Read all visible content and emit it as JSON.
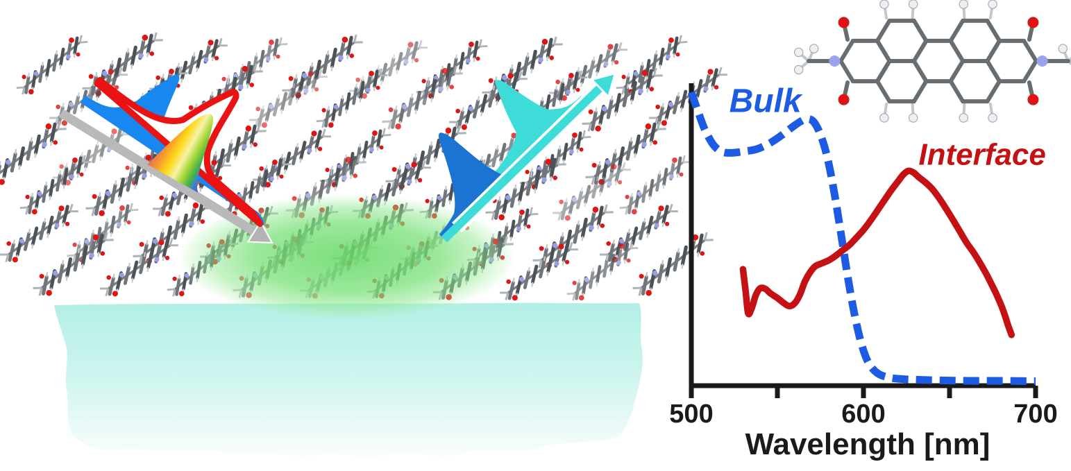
{
  "figure_type": "scientific graphical abstract: interface-specific spectroscopy of a molecular film",
  "chart": {
    "xlabel": "Wavelength [nm]",
    "labels": {
      "bulk": "Bulk",
      "interface": "Interface"
    }
  },
  "chart_data": {
    "type": "line",
    "title": "",
    "xlabel": "Wavelength [nm]",
    "ylabel": "",
    "xlim": [
      500,
      700
    ],
    "ylim": [
      0,
      1.05
    ],
    "grid": false,
    "x_ticks": [
      500,
      550,
      600,
      650,
      700
    ],
    "x_tick_labeled": [
      500,
      600,
      700
    ],
    "x_tick_labels": [
      "500",
      "600",
      "700"
    ],
    "legend_position": "in-plot annotations",
    "series": [
      {
        "name": "Bulk",
        "style": "dashed",
        "color": "#1E5BE4",
        "x": [
          500,
          504,
          508,
          513,
          518,
          524,
          531,
          538,
          545,
          552,
          558,
          563,
          567,
          571,
          575,
          579,
          583,
          587,
          591,
          595,
          599,
          603,
          608,
          614,
          622,
          635,
          650,
          665,
          680,
          700
        ],
        "y": [
          0.97,
          0.905,
          0.845,
          0.795,
          0.773,
          0.77,
          0.775,
          0.782,
          0.8,
          0.826,
          0.852,
          0.872,
          0.882,
          0.873,
          0.83,
          0.755,
          0.64,
          0.5,
          0.355,
          0.23,
          0.135,
          0.075,
          0.042,
          0.028,
          0.022,
          0.019,
          0.017,
          0.016,
          0.016,
          0.015
        ]
      },
      {
        "name": "Interface",
        "style": "solid",
        "color": "#C41113",
        "x": [
          530,
          531.5,
          533,
          535,
          537.5,
          540,
          543,
          546,
          550,
          554,
          557,
          560,
          563,
          566,
          569,
          572,
          576,
          580,
          584,
          588,
          592,
          596,
          600,
          604,
          608,
          612,
          616,
          620,
          623,
          626,
          629,
          632,
          636,
          640,
          644,
          648,
          652,
          656,
          660,
          664,
          668,
          671,
          674,
          677,
          680,
          682,
          684,
          686
        ],
        "y": [
          0.385,
          0.315,
          0.24,
          0.255,
          0.3,
          0.322,
          0.32,
          0.305,
          0.29,
          0.272,
          0.263,
          0.272,
          0.3,
          0.345,
          0.375,
          0.395,
          0.405,
          0.415,
          0.43,
          0.448,
          0.466,
          0.49,
          0.515,
          0.545,
          0.578,
          0.612,
          0.645,
          0.675,
          0.697,
          0.71,
          0.705,
          0.69,
          0.672,
          0.65,
          0.62,
          0.585,
          0.548,
          0.51,
          0.472,
          0.44,
          0.403,
          0.373,
          0.34,
          0.305,
          0.266,
          0.235,
          0.2,
          0.168
        ]
      }
    ],
    "annotations": [
      {
        "text": "Bulk",
        "x": 543,
        "y": 0.905,
        "color": "#1E5BE4"
      },
      {
        "text": "Interface",
        "x": 669,
        "y": 0.73,
        "color": "#C41113"
      }
    ]
  },
  "scene": {
    "crystal_lattice": {
      "icon": "pdi-molecule-edge-on-icon",
      "description": "tilted lattice of perylene diimide molecules (3 layers, 2 staggered sub-rows each)",
      "bond_dark": "#4D5257",
      "bond_mid": "#6F757A",
      "bond_light": "#C6CACD",
      "oxygen": "#DD1515",
      "nitrogen": "#96A0E6"
    },
    "interface_glow": {
      "icon": "interface-excitation-glow-icon",
      "color": "#69DA69"
    },
    "substrate": {
      "icon": "substrate-slab-icon",
      "color_top": "#B2EFE6",
      "color_bottom": "#FFFFFF"
    },
    "incoming_beams": {
      "icon": "incoming-beam-arrow-icon",
      "arrow_color": "#B9B9B9",
      "pulses": [
        {
          "icon": "blue-pump-pulse-icon",
          "color": "#1887EF"
        },
        {
          "icon": "red-pulse-outline-icon",
          "color": "#EA1212"
        },
        {
          "icon": "rainbow-supercontinuum-pulse-icon",
          "gradient": [
            "#EC6A5F",
            "#F79B2C",
            "#FDD818",
            "#F8F3A6",
            "#A8D838",
            "#46B348",
            "#3B7ED8",
            "#7A3EC0"
          ]
        }
      ]
    },
    "outgoing_beams": {
      "icon": "outgoing-signal-arrow-icon",
      "arrow_color": "#3EDCD8",
      "pulses": [
        {
          "icon": "blue-signal-pulse-icon",
          "color": "#1B74D2"
        },
        {
          "icon": "turquoise-signal-pulse-icon",
          "color": "#3EDCD8"
        }
      ]
    },
    "molecule_structure": {
      "icon": "pdi-molecule-ball-stick-icon",
      "bond_color": "#686D72",
      "oxygen_color": "#DE1414",
      "nitrogen_color": "#9AA3E8",
      "hydrogen_color": "#EDEFF1"
    }
  },
  "colors": {
    "axis": "#1A1A1A",
    "bulk_blue": "#1E5BE4",
    "interface_red": "#C41113",
    "pump_blue": "#1887EF",
    "pulse_red": "#EA1212",
    "beam_gray": "#B9B9B9",
    "signal_blue": "#1B74D2",
    "signal_cyan": "#3EDCD8"
  }
}
